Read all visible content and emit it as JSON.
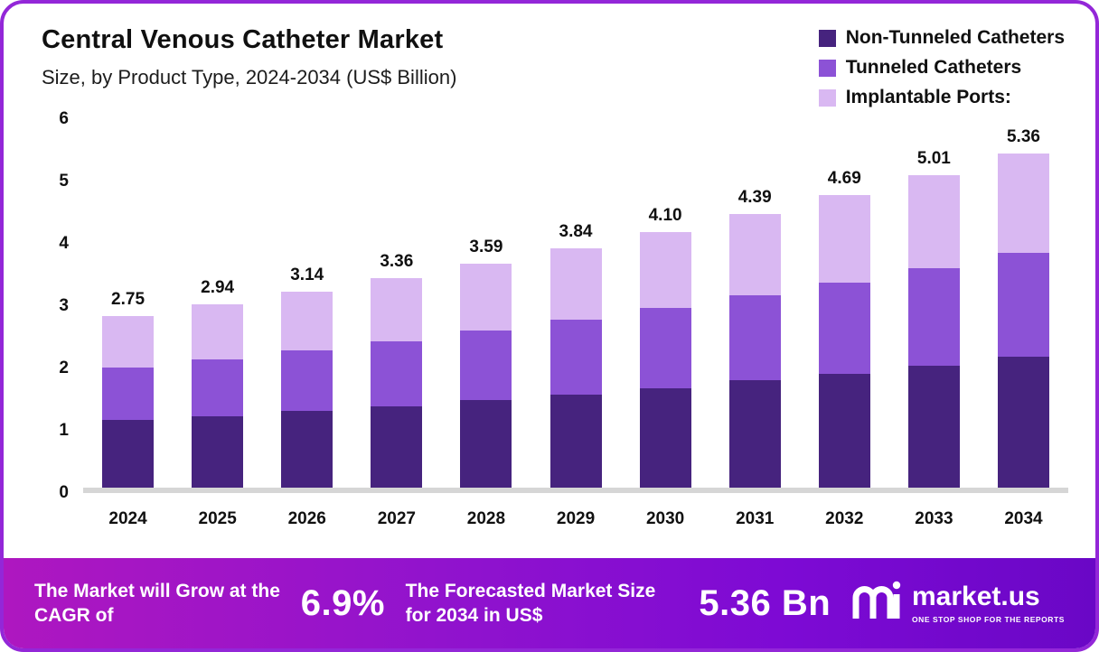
{
  "header": {
    "title": "Central Venous Catheter Market",
    "subtitle": "Size, by Product Type, 2024-2034 (US$ Billion)"
  },
  "legend": [
    {
      "label": "Non-Tunneled Catheters",
      "color": "#46237e"
    },
    {
      "label": "Tunneled Catheters",
      "color": "#8c52d6"
    },
    {
      "label": "Implantable Ports:",
      "color": "#d9b8f2"
    }
  ],
  "chart_data": {
    "type": "bar",
    "stacked": true,
    "title": "Central Venous Catheter Market Size, by Product Type, 2024-2034 (US$ Billion)",
    "categories": [
      "2024",
      "2025",
      "2026",
      "2027",
      "2028",
      "2029",
      "2030",
      "2031",
      "2032",
      "2033",
      "2034"
    ],
    "series": [
      {
        "name": "Non-Tunneled Catheters",
        "color": "#46237e",
        "values": [
          1.08,
          1.15,
          1.23,
          1.31,
          1.4,
          1.5,
          1.6,
          1.72,
          1.83,
          1.96,
          2.1
        ]
      },
      {
        "name": "Tunneled Catheters",
        "color": "#8c52d6",
        "values": [
          0.85,
          0.91,
          0.97,
          1.04,
          1.12,
          1.2,
          1.28,
          1.37,
          1.46,
          1.56,
          1.67
        ]
      },
      {
        "name": "Implantable Ports",
        "color": "#d9b8f2",
        "values": [
          0.82,
          0.88,
          0.94,
          1.01,
          1.07,
          1.14,
          1.22,
          1.3,
          1.4,
          1.49,
          1.59
        ]
      }
    ],
    "totals": [
      "2.75",
      "2.94",
      "3.14",
      "3.36",
      "3.59",
      "3.84",
      "4.10",
      "4.39",
      "4.69",
      "5.01",
      "5.36"
    ],
    "xlabel": "",
    "ylabel": "",
    "ylim": [
      0,
      6
    ],
    "yticks": [
      0,
      1,
      2,
      3,
      4,
      5,
      6
    ],
    "grid": false,
    "legend_position": "top-right"
  },
  "footer": {
    "cagr_text": "The Market will Grow at the CAGR of",
    "cagr_value": "6.9%",
    "forecast_text": "The Forecasted Market Size for 2034 in US$",
    "forecast_value": "5.36 Bn",
    "brand": "market.us",
    "brand_tagline": "ONE STOP SHOP FOR THE REPORTS"
  }
}
